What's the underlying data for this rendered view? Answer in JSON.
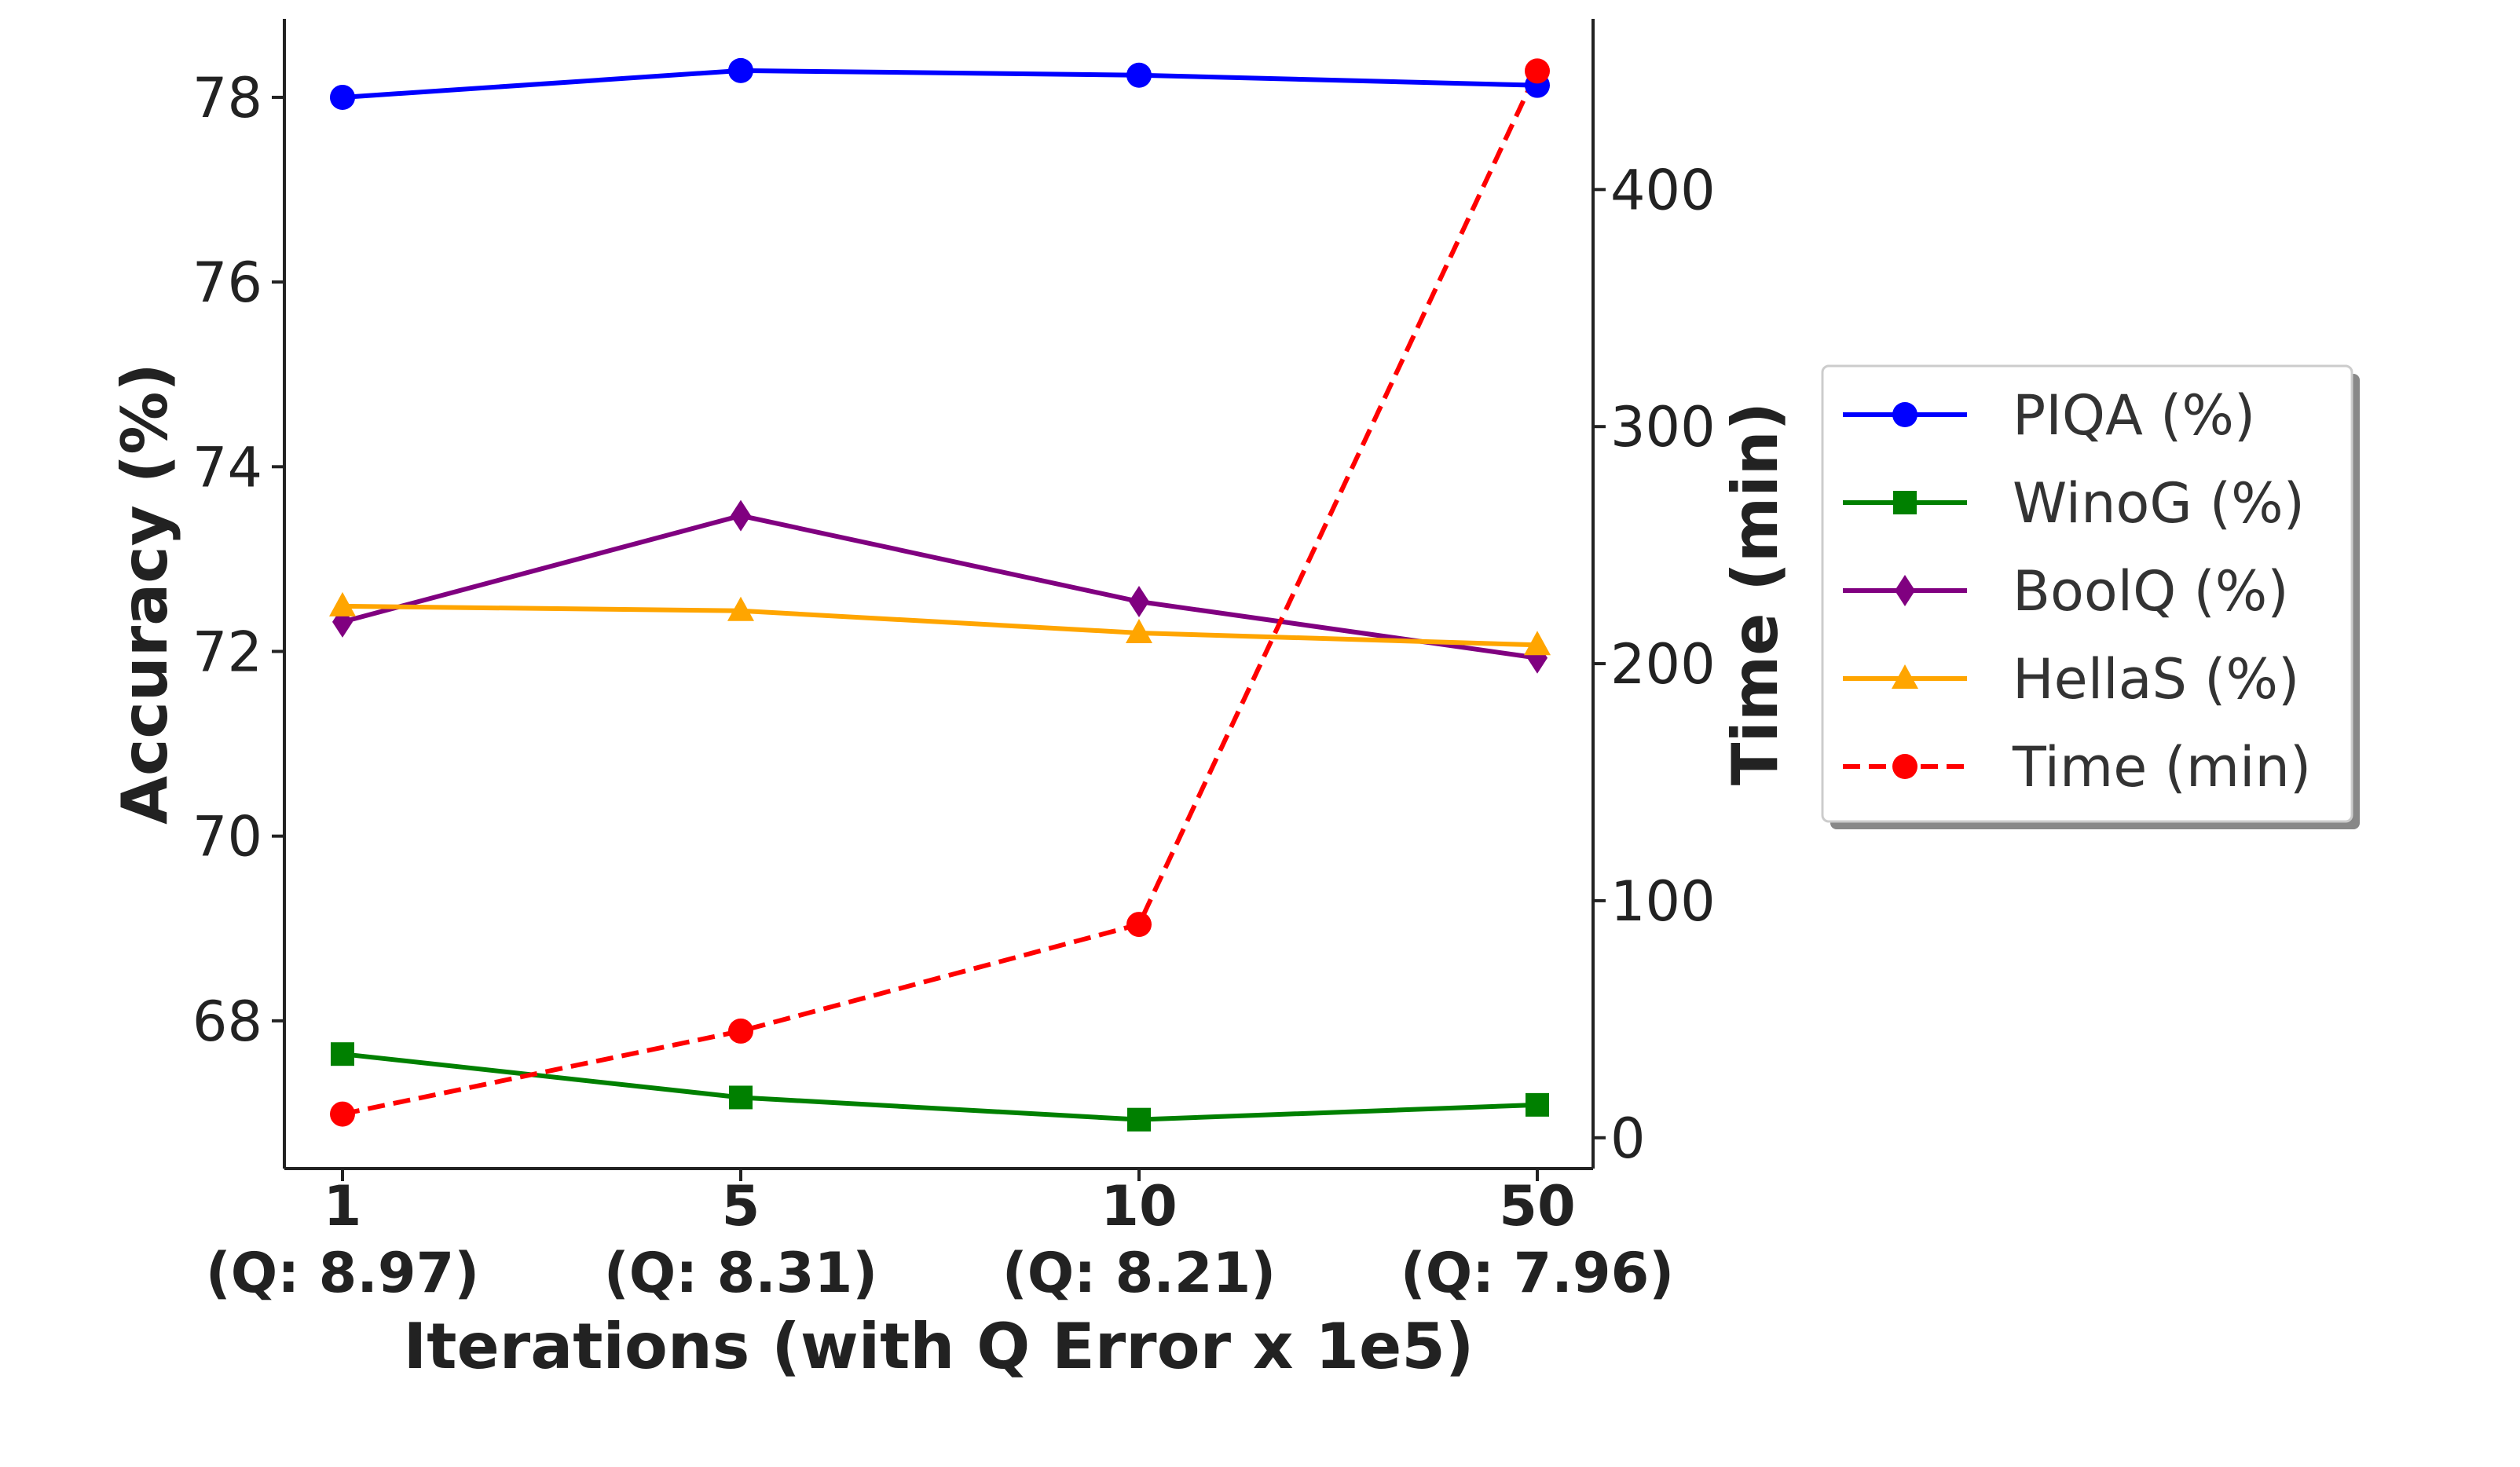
{
  "chart_data": {
    "type": "line",
    "categories": [
      "1",
      "5",
      "10",
      "50"
    ],
    "category_sublabels": [
      "(Q: 8.97)",
      "(Q: 8.31)",
      "(Q: 8.21)",
      "(Q: 7.96)"
    ],
    "xlabel": "Iterations (with Q Error x 1e5)",
    "ylabel": "Accuracy (%)",
    "ylabel_right": "Time (min)",
    "ylim": [
      66.4,
      78.85
    ],
    "ylim_right": [
      -13,
      472
    ],
    "yticks": [
      68,
      70,
      72,
      74,
      76,
      78
    ],
    "yticks_right": [
      0,
      100,
      200,
      300,
      400
    ],
    "grid": false,
    "legend_position": "right, outside plot",
    "series": [
      {
        "name": "PIQA (%)",
        "axis": "left",
        "color": "#0000ff",
        "marker": "circle",
        "dash": "solid",
        "values": [
          78.0,
          78.29,
          78.24,
          78.13
        ]
      },
      {
        "name": "WinoG (%)",
        "axis": "left",
        "color": "#008000",
        "marker": "square",
        "dash": "solid",
        "values": [
          67.64,
          67.17,
          66.93,
          67.09
        ]
      },
      {
        "name": "BoolQ (%)",
        "axis": "left",
        "color": "#800080",
        "marker": "diamond",
        "dash": "solid",
        "values": [
          72.32,
          73.47,
          72.54,
          71.93
        ]
      },
      {
        "name": "HellaS (%)",
        "axis": "left",
        "color": "#ffa500",
        "marker": "triangle",
        "dash": "solid",
        "values": [
          72.49,
          72.44,
          72.2,
          72.07
        ]
      },
      {
        "name": "Time (min)",
        "axis": "right",
        "color": "#ff0000",
        "marker": "circle",
        "dash": "dashed",
        "values": [
          10,
          45,
          90,
          450
        ]
      }
    ]
  }
}
